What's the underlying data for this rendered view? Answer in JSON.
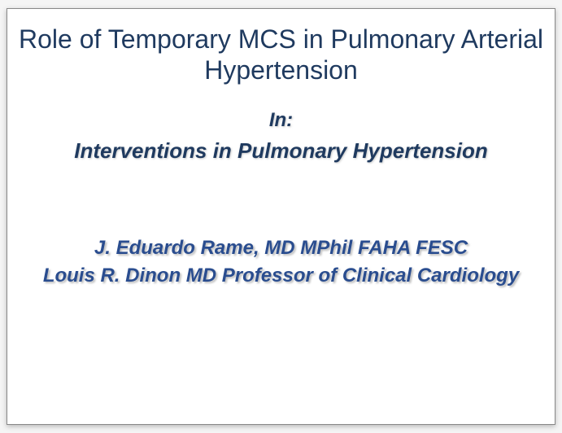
{
  "slide": {
    "title": "Role of Temporary MCS in Pulmonary Arterial Hypertension",
    "subtitle_label": "In:",
    "subtitle": "Interventions in Pulmonary Hypertension",
    "author": "J. Eduardo Rame, MD MPhil FAHA FESC",
    "affiliation": "Louis R. Dinon MD Professor of Clinical Cardiology",
    "colors": {
      "title_color": "#1f3a5f",
      "subtitle_color": "#1f3a5f",
      "author_color": "#2a4d8f",
      "background": "#ffffff",
      "page_background": "#f5f5f5"
    },
    "typography": {
      "title_fontsize": 32,
      "subtitle_label_fontsize": 24,
      "subtitle_fontsize": 26,
      "author_fontsize": 24,
      "affiliation_fontsize": 24,
      "title_weight": "normal",
      "subtitle_weight": "bold",
      "author_weight": "bold",
      "italic_sections": [
        "subtitle_label",
        "subtitle",
        "author",
        "affiliation"
      ]
    }
  }
}
